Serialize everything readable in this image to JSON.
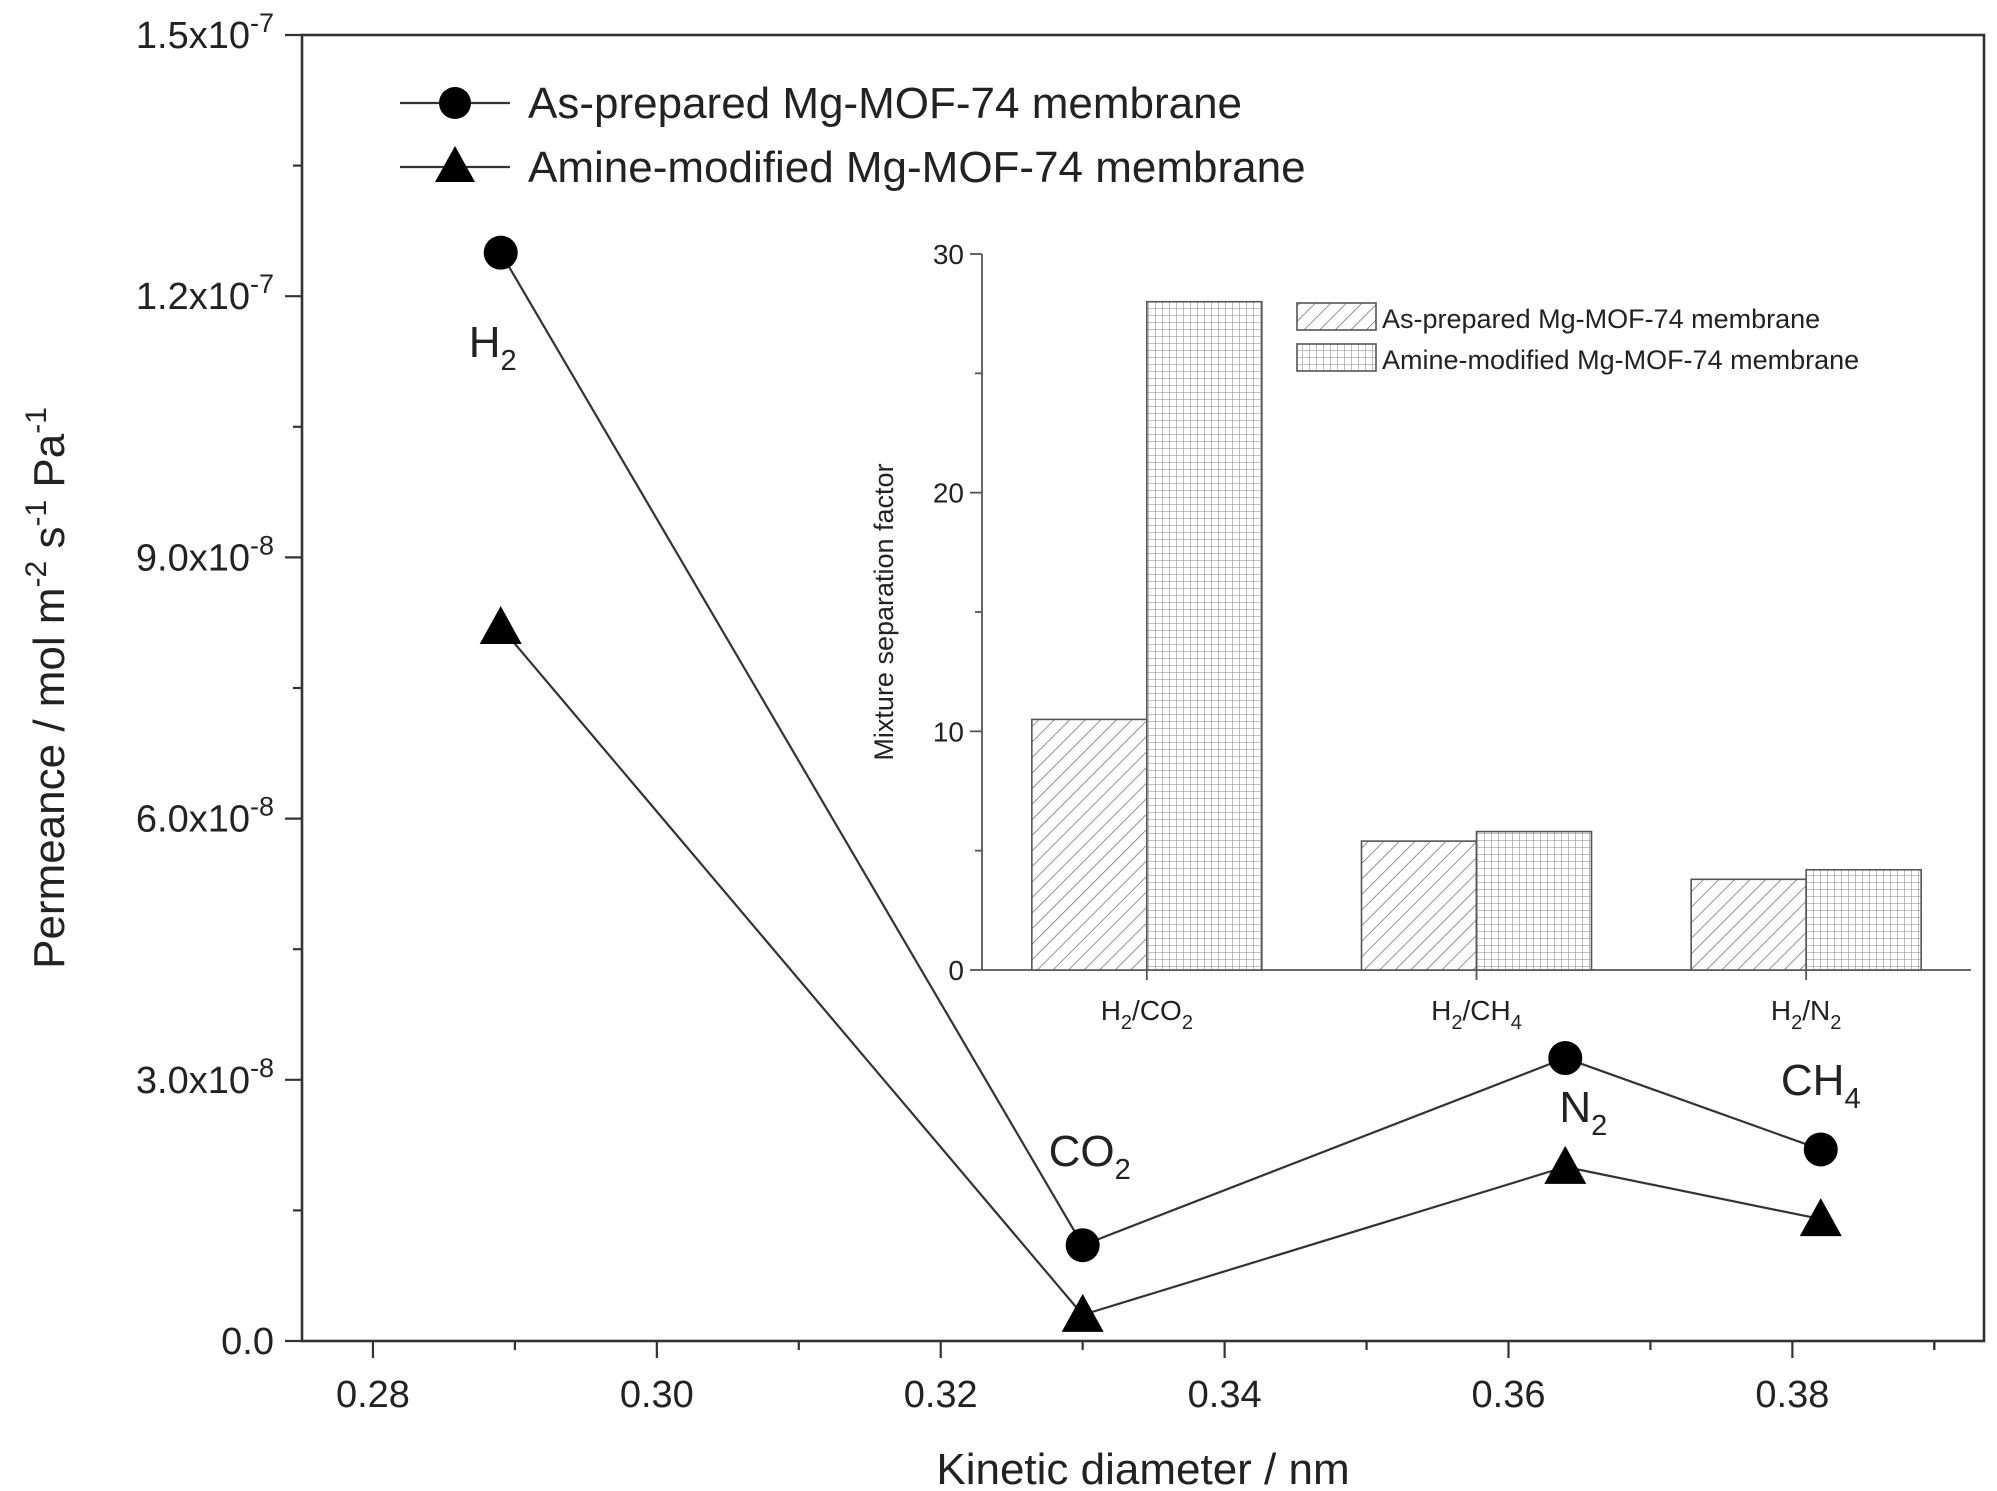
{
  "chart_data": [
    {
      "type": "line",
      "title": "",
      "xlabel": "Kinetic diameter / nm",
      "ylabel": {
        "base": "Permeance / mol m",
        "exp1": "-2",
        "mid1": " s",
        "exp2": "-1",
        "mid2": " Pa",
        "exp3": "-1"
      },
      "xlim": [
        0.275,
        0.3935
      ],
      "ylim": [
        0,
        1.5e-07
      ],
      "x_ticks": [
        {
          "value": 0.28,
          "label": "0.28"
        },
        {
          "value": 0.3,
          "label": "0.30"
        },
        {
          "value": 0.32,
          "label": "0.32"
        },
        {
          "value": 0.34,
          "label": "0.34"
        },
        {
          "value": 0.36,
          "label": "0.36"
        },
        {
          "value": 0.38,
          "label": "0.38"
        }
      ],
      "y_ticks": [
        {
          "value": 0,
          "label": "0.0",
          "exp": ""
        },
        {
          "value": 3e-08,
          "label": "3.0x10",
          "exp": "-8"
        },
        {
          "value": 6e-08,
          "label": "6.0x10",
          "exp": "-8"
        },
        {
          "value": 9e-08,
          "label": "9.0x10",
          "exp": "-8"
        },
        {
          "value": 1.2e-07,
          "label": "1.2x10",
          "exp": "-7"
        },
        {
          "value": 1.5e-07,
          "label": "1.5x10",
          "exp": "-7"
        }
      ],
      "legend_position": "top-left",
      "series": [
        {
          "name": "As-prepared Mg-MOF-74 membrane",
          "marker": "circle",
          "x": [
            0.289,
            0.33,
            0.364,
            0.382
          ],
          "y": [
            1.25e-07,
            1.1e-08,
            3.25e-08,
            2.2e-08
          ]
        },
        {
          "name": "Amine-modified Mg-MOF-74 membrane",
          "marker": "triangle",
          "x": [
            0.289,
            0.33,
            0.364,
            0.382
          ],
          "y": [
            8.2e-08,
            3e-09,
            2e-08,
            1.4e-08
          ]
        }
      ],
      "annotations": [
        {
          "base": "H",
          "sub": "2",
          "x": 0.289
        },
        {
          "base": "CO",
          "sub": "2",
          "x": 0.33
        },
        {
          "base": "N",
          "sub": "2",
          "x": 0.364
        },
        {
          "base": "CH",
          "sub": "4",
          "x": 0.382
        }
      ]
    },
    {
      "type": "bar",
      "title": "",
      "xlabel": "",
      "ylabel": "Mixture separation factor",
      "ylim": [
        0,
        30
      ],
      "y_ticks": [
        0,
        10,
        20,
        30
      ],
      "categories": [
        {
          "a": "H",
          "a_sub": "2",
          "b": "/CO",
          "b_sub": "2"
        },
        {
          "a": "H",
          "a_sub": "2",
          "b": "/CH",
          "b_sub": "4"
        },
        {
          "a": "H",
          "a_sub": "2",
          "b": "/N",
          "b_sub": "2"
        }
      ],
      "legend_position": "top-right",
      "series": [
        {
          "name": "As-prepared Mg-MOF-74 membrane",
          "pattern": "diagonal",
          "values": [
            10.5,
            5.4,
            3.8
          ]
        },
        {
          "name": "Amine-modified Mg-MOF-74 membrane",
          "pattern": "grid",
          "values": [
            28.0,
            5.8,
            4.2
          ]
        }
      ]
    }
  ]
}
